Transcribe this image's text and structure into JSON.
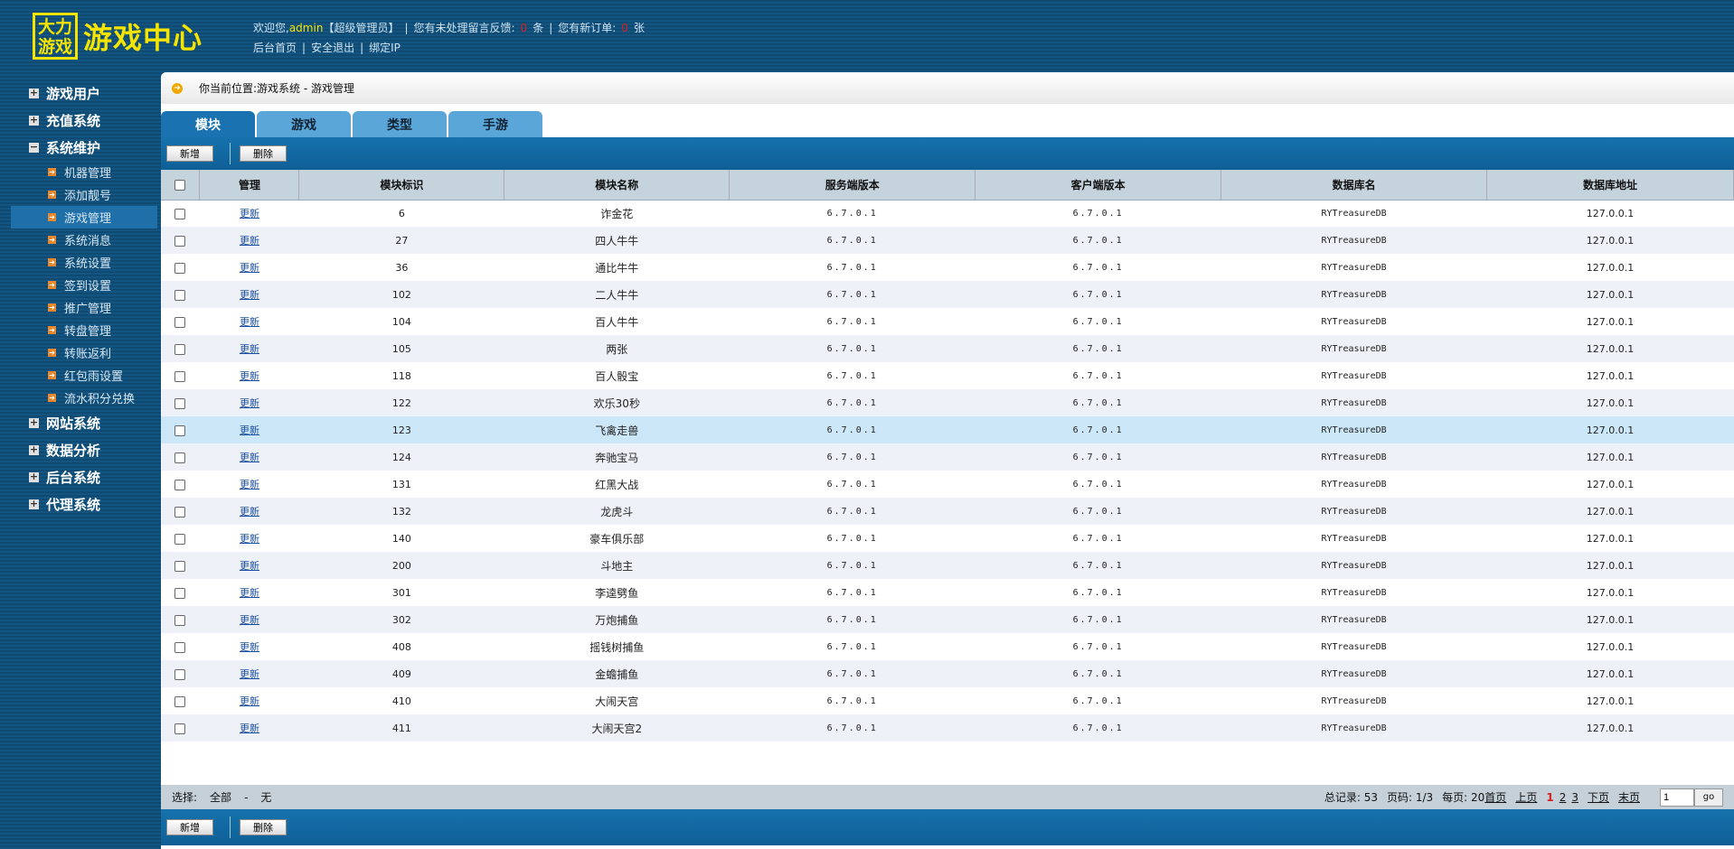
{
  "logo": {
    "box_line1": "大力",
    "box_line2": "游戏",
    "title": "游戏中心"
  },
  "header": {
    "welcome": "欢迎您,",
    "user": "admin",
    "role": "【超级管理员】",
    "msg_prefix": "您有未处理留言反馈:",
    "msg_count": "0",
    "msg_unit": "条",
    "order_prefix": "您有新订单:",
    "order_count": "0",
    "order_unit": "张",
    "links": [
      "后台首页",
      "安全退出",
      "绑定IP"
    ]
  },
  "sidebar": {
    "groups_top": [
      {
        "label": "游戏用户",
        "icon": "plus-icon"
      },
      {
        "label": "充值系统",
        "icon": "plus-icon"
      },
      {
        "label": "系统维护",
        "icon": "minus-icon"
      }
    ],
    "subitems": [
      "机器管理",
      "添加靓号",
      "游戏管理",
      "系统消息",
      "系统设置",
      "签到设置",
      "推广管理",
      "转盘管理",
      "转账返利",
      "红包雨设置",
      "流水积分兑换"
    ],
    "active_sub": "游戏管理",
    "groups_bottom": [
      {
        "label": "网站系统"
      },
      {
        "label": "数据分析"
      },
      {
        "label": "后台系统"
      },
      {
        "label": "代理系统"
      }
    ]
  },
  "breadcrumb": "你当前位置:游戏系统 - 游戏管理",
  "tabs": [
    "模块",
    "游戏",
    "类型",
    "手游"
  ],
  "toolbar": {
    "add": "新增",
    "delete": "删除"
  },
  "table": {
    "headers": [
      "管理",
      "模块标识",
      "模块名称",
      "服务端版本",
      "客户端版本",
      "数据库名",
      "数据库地址"
    ],
    "action": "更新",
    "rows": [
      [
        "6",
        "诈金花"
      ],
      [
        "27",
        "四人牛牛"
      ],
      [
        "36",
        "通比牛牛"
      ],
      [
        "102",
        "二人牛牛"
      ],
      [
        "104",
        "百人牛牛"
      ],
      [
        "105",
        "两张"
      ],
      [
        "118",
        "百人骰宝"
      ],
      [
        "122",
        "欢乐30秒"
      ],
      [
        "123",
        "飞禽走兽"
      ],
      [
        "124",
        "奔驰宝马"
      ],
      [
        "131",
        "红黑大战"
      ],
      [
        "132",
        "龙虎斗"
      ],
      [
        "140",
        "豪车俱乐部"
      ],
      [
        "200",
        "斗地主"
      ],
      [
        "301",
        "李逵劈鱼"
      ],
      [
        "302",
        "万炮捕鱼"
      ],
      [
        "408",
        "摇钱树捕鱼"
      ],
      [
        "409",
        "金蟾捕鱼"
      ],
      [
        "410",
        "大闹天宫"
      ],
      [
        "411",
        "大闹天宫2"
      ]
    ],
    "server_version": "6.7.0.1",
    "client_version": "6.7.0.1",
    "db_name": "RYTreasureDB",
    "db_addr": "127.0.0.1",
    "highlighted_row": 8
  },
  "pager": {
    "select_label": "选择:",
    "all": "全部",
    "dash": "-",
    "none": "无",
    "total": "总记录: 53",
    "page": "页码: 1/3",
    "per_page": "每页: 20",
    "first": "首页",
    "prev": "上页",
    "pages": [
      "1",
      "2",
      "3"
    ],
    "current": "1",
    "next": "下页",
    "last": "末页",
    "input_value": "1",
    "go": "go"
  }
}
